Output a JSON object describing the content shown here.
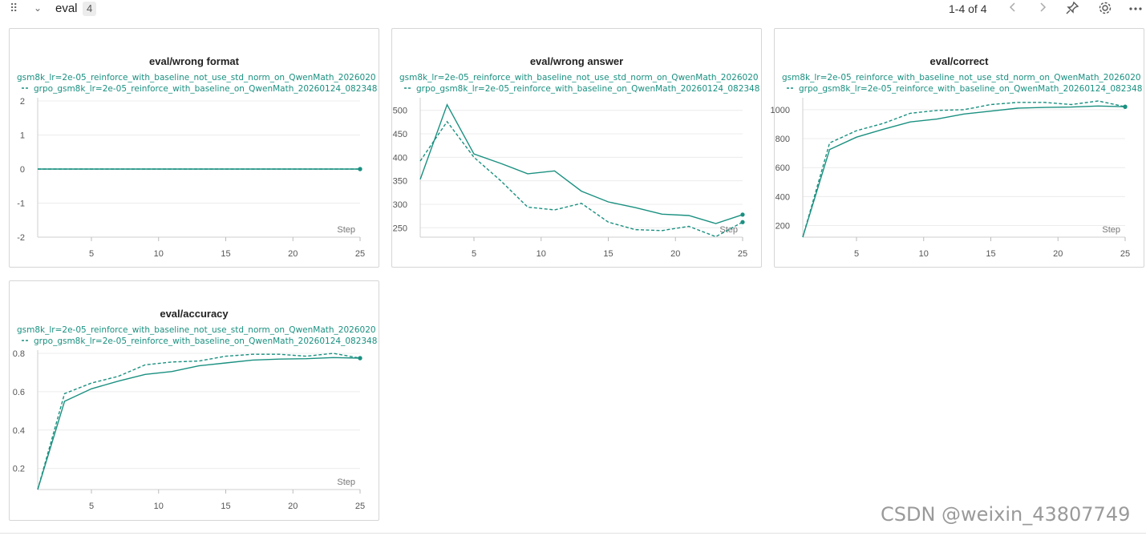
{
  "header": {
    "section_title": "eval",
    "section_count": "4",
    "pagination": "1-4 of 4"
  },
  "icons": {
    "drag": "drag-handle-icon",
    "collapse": "chevron-down-icon",
    "prev": "chevron-left-icon",
    "next": "chevron-right-icon",
    "pin": "pin-icon",
    "settings": "gear-icon",
    "more": "more-icon"
  },
  "colors": {
    "series": "#1a9080",
    "grid": "#ececec",
    "border": "#d6d6d6"
  },
  "watermark": "CSDN @weixin_43807749",
  "chart_data": [
    {
      "type": "line",
      "title": "eval/wrong format",
      "xlabel": "Step",
      "xlim": [
        1,
        25
      ],
      "xticks": [
        5,
        10,
        15,
        20,
        25
      ],
      "ylim": [
        -2,
        2
      ],
      "yticks": [
        -2,
        -1,
        0,
        1,
        2
      ],
      "ytick_labels": [
        "-2",
        "-1",
        "0",
        "1",
        "2"
      ],
      "series": [
        {
          "name": "gsm8k_lr=2e-05_reinforce_with_baseline_not_use_std_norm_on_QwenMath_2026020",
          "style": "solid",
          "x": [
            1,
            3,
            5,
            7,
            9,
            11,
            13,
            15,
            17,
            19,
            21,
            23,
            25
          ],
          "y": [
            0,
            0,
            0,
            0,
            0,
            0,
            0,
            0,
            0,
            0,
            0,
            0,
            0
          ]
        },
        {
          "name": "grpo_gsm8k_lr=2e-05_reinforce_with_baseline_on_QwenMath_20260124_082348",
          "style": "dashed",
          "x": [
            1,
            3,
            5,
            7,
            9,
            11,
            13,
            15,
            17,
            19,
            21,
            23,
            25
          ],
          "y": [
            0,
            0,
            0,
            0,
            0,
            0,
            0,
            0,
            0,
            0,
            0,
            0,
            0
          ]
        }
      ]
    },
    {
      "type": "line",
      "title": "eval/wrong answer",
      "xlabel": "Step",
      "xlim": [
        1,
        25
      ],
      "xticks": [
        5,
        10,
        15,
        20,
        25
      ],
      "ylim": [
        230,
        520
      ],
      "yticks": [
        250,
        300,
        350,
        400,
        450,
        500
      ],
      "ytick_labels": [
        "250",
        "300",
        "350",
        "400",
        "450",
        "500"
      ],
      "series": [
        {
          "name": "gsm8k_lr=2e-05_reinforce_with_baseline_not_use_std_norm_on_QwenMath_2026020",
          "style": "solid",
          "x": [
            1,
            3,
            5,
            7,
            9,
            11,
            13,
            15,
            17,
            19,
            21,
            23,
            25
          ],
          "y": [
            353,
            512,
            407,
            387,
            365,
            371,
            328,
            305,
            293,
            279,
            276,
            259,
            278
          ]
        },
        {
          "name": "grpo_gsm8k_lr=2e-05_reinforce_with_baseline_on_QwenMath_20260124_082348",
          "style": "dashed",
          "x": [
            1,
            3,
            5,
            7,
            9,
            11,
            13,
            15,
            17,
            19,
            21,
            23,
            25
          ],
          "y": [
            392,
            476,
            400,
            350,
            294,
            288,
            302,
            262,
            246,
            244,
            253,
            231,
            262
          ]
        }
      ]
    },
    {
      "type": "line",
      "title": "eval/correct",
      "xlabel": "Step",
      "xlim": [
        1,
        25
      ],
      "xticks": [
        5,
        10,
        15,
        20,
        25
      ],
      "ylim": [
        120,
        1060
      ],
      "yticks": [
        200,
        400,
        600,
        800,
        1000
      ],
      "ytick_labels": [
        "200",
        "400",
        "600",
        "800",
        "1000"
      ],
      "series": [
        {
          "name": "gsm8k_lr=2e-05_reinforce_with_baseline_not_use_std_norm_on_QwenMath_2026020",
          "style": "solid",
          "x": [
            1,
            3,
            5,
            7,
            9,
            11,
            13,
            15,
            17,
            19,
            21,
            23,
            25
          ],
          "y": [
            120,
            725,
            810,
            865,
            915,
            935,
            970,
            990,
            1010,
            1015,
            1018,
            1025,
            1020
          ]
        },
        {
          "name": "grpo_gsm8k_lr=2e-05_reinforce_with_baseline_on_QwenMath_20260124_082348",
          "style": "dashed",
          "x": [
            1,
            3,
            5,
            7,
            9,
            11,
            13,
            15,
            17,
            19,
            21,
            23,
            25
          ],
          "y": [
            120,
            770,
            855,
            905,
            975,
            995,
            1000,
            1035,
            1050,
            1050,
            1035,
            1060,
            1020
          ]
        }
      ]
    },
    {
      "type": "line",
      "title": "eval/accuracy",
      "xlabel": "Step",
      "xlim": [
        1,
        25
      ],
      "xticks": [
        5,
        10,
        15,
        20,
        25
      ],
      "ylim": [
        0.09,
        0.8
      ],
      "yticks": [
        0.2,
        0.4,
        0.6,
        0.8
      ],
      "ytick_labels": [
        "0.2",
        "0.4",
        "0.6",
        "0.8"
      ],
      "series": [
        {
          "name": "gsm8k_lr=2e-05_reinforce_with_baseline_not_use_std_norm_on_QwenMath_2026020",
          "style": "solid",
          "x": [
            1,
            3,
            5,
            7,
            9,
            11,
            13,
            15,
            17,
            19,
            21,
            23,
            25
          ],
          "y": [
            0.09,
            0.55,
            0.615,
            0.655,
            0.69,
            0.705,
            0.735,
            0.75,
            0.765,
            0.77,
            0.772,
            0.778,
            0.775
          ]
        },
        {
          "name": "grpo_gsm8k_lr=2e-05_reinforce_with_baseline_on_QwenMath_20260124_082348",
          "style": "dashed",
          "x": [
            1,
            3,
            5,
            7,
            9,
            11,
            13,
            15,
            17,
            19,
            21,
            23,
            25
          ],
          "y": [
            0.09,
            0.59,
            0.645,
            0.68,
            0.74,
            0.755,
            0.76,
            0.785,
            0.795,
            0.795,
            0.785,
            0.8,
            0.775
          ]
        }
      ]
    }
  ]
}
